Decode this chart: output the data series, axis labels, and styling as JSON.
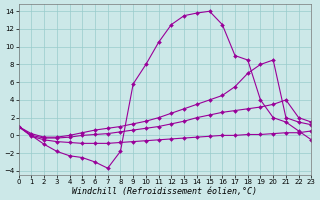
{
  "background_color": "#cce8e8",
  "grid_color": "#99cccc",
  "line_color": "#990099",
  "xlim": [
    0,
    23
  ],
  "ylim": [
    -4.5,
    14.8
  ],
  "yticks": [
    -4,
    -2,
    0,
    2,
    4,
    6,
    8,
    10,
    12,
    14
  ],
  "xticks": [
    0,
    1,
    2,
    3,
    4,
    5,
    6,
    7,
    8,
    9,
    10,
    11,
    12,
    13,
    14,
    15,
    16,
    17,
    18,
    19,
    20,
    21,
    22,
    23
  ],
  "xlabel": "Windchill (Refroidissement éolien,°C)",
  "tick_labelsize": 5.0,
  "xlabel_fontsize": 6.0,
  "linewidth": 0.8,
  "marker": "D",
  "marker_size": 2.0,
  "line1_x": [
    0,
    1,
    2,
    3,
    4,
    5,
    6,
    7,
    8,
    9,
    10,
    11,
    12,
    13,
    14,
    15,
    16,
    17,
    18,
    19,
    20,
    21,
    22,
    23
  ],
  "line1_y": [
    1.0,
    0.0,
    -1.0,
    -1.8,
    -2.3,
    -2.5,
    -3.0,
    -3.7,
    -1.8,
    5.8,
    8.0,
    10.5,
    12.5,
    13.5,
    13.8,
    14.0,
    12.5,
    9.0,
    8.5,
    4.0,
    2.0,
    1.5,
    0.5,
    -0.5
  ],
  "line2_x": [
    0,
    1,
    2,
    3,
    4,
    5,
    6,
    7,
    8,
    9,
    10,
    11,
    12,
    13,
    14,
    15,
    16,
    17,
    18,
    19,
    20,
    21,
    22,
    23
  ],
  "line2_y": [
    1.0,
    0.2,
    -0.2,
    -0.2,
    0.0,
    0.3,
    0.6,
    0.8,
    1.0,
    1.3,
    1.6,
    2.0,
    2.5,
    3.0,
    3.5,
    4.0,
    4.5,
    5.5,
    7.0,
    8.0,
    8.5,
    2.0,
    1.5,
    1.2
  ],
  "line3_x": [
    0,
    1,
    2,
    3,
    4,
    5,
    6,
    7,
    8,
    9,
    10,
    11,
    12,
    13,
    14,
    15,
    16,
    17,
    18,
    19,
    20,
    21,
    22,
    23
  ],
  "line3_y": [
    1.0,
    0.0,
    -0.3,
    -0.3,
    -0.2,
    0.0,
    0.1,
    0.2,
    0.4,
    0.6,
    0.8,
    1.0,
    1.3,
    1.6,
    2.0,
    2.3,
    2.6,
    2.8,
    3.0,
    3.2,
    3.5,
    4.0,
    2.0,
    1.5
  ],
  "line4_x": [
    0,
    1,
    2,
    3,
    4,
    5,
    6,
    7,
    8,
    9,
    10,
    11,
    12,
    13,
    14,
    15,
    16,
    17,
    18,
    19,
    20,
    21,
    22,
    23
  ],
  "line4_y": [
    1.0,
    -0.1,
    -0.5,
    -0.7,
    -0.8,
    -0.9,
    -0.9,
    -0.9,
    -0.8,
    -0.7,
    -0.6,
    -0.5,
    -0.4,
    -0.3,
    -0.2,
    -0.1,
    0.0,
    0.0,
    0.1,
    0.1,
    0.2,
    0.3,
    0.3,
    0.5
  ]
}
